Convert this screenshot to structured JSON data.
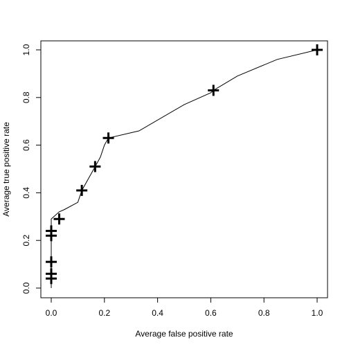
{
  "chart_data": {
    "type": "line",
    "title": "",
    "xlabel": "Average false positive rate",
    "ylabel": "Average true positive rate",
    "xlim": [
      0,
      1
    ],
    "ylim": [
      0,
      1
    ],
    "grid": false,
    "x_ticks": [
      0.0,
      0.2,
      0.4,
      0.6,
      0.8,
      1.0
    ],
    "x_tick_labels": [
      "0.0",
      "0.2",
      "0.4",
      "0.6",
      "0.8",
      "1.0"
    ],
    "y_ticks": [
      0.0,
      0.2,
      0.4,
      0.6,
      0.8,
      1.0
    ],
    "y_tick_labels": [
      "0.0",
      "0.2",
      "0.4",
      "0.6",
      "0.8",
      "1.0"
    ],
    "series": [
      {
        "type": "line",
        "color": "#000000",
        "x": [
          0.0,
          0.0,
          0.0,
          0.0,
          0.0,
          0.0,
          0.0,
          0.0,
          0.03,
          0.05,
          0.1,
          0.115,
          0.14,
          0.165,
          0.185,
          0.2,
          0.215,
          0.33,
          0.5,
          0.6,
          0.61,
          0.7,
          0.85,
          1.0
        ],
        "y": [
          0.0,
          0.04,
          0.06,
          0.11,
          0.22,
          0.24,
          0.28,
          0.29,
          0.32,
          0.33,
          0.36,
          0.41,
          0.46,
          0.51,
          0.55,
          0.6,
          0.63,
          0.66,
          0.77,
          0.82,
          0.83,
          0.89,
          0.96,
          1.0
        ]
      },
      {
        "type": "scatter",
        "marker": "plus",
        "color": "#000000",
        "x": [
          0.0,
          0.0,
          0.0,
          0.0,
          0.0,
          0.03,
          0.115,
          0.165,
          0.215,
          0.61,
          1.0
        ],
        "y": [
          0.04,
          0.06,
          0.11,
          0.22,
          0.24,
          0.29,
          0.41,
          0.51,
          0.63,
          0.83,
          1.0
        ]
      }
    ]
  }
}
